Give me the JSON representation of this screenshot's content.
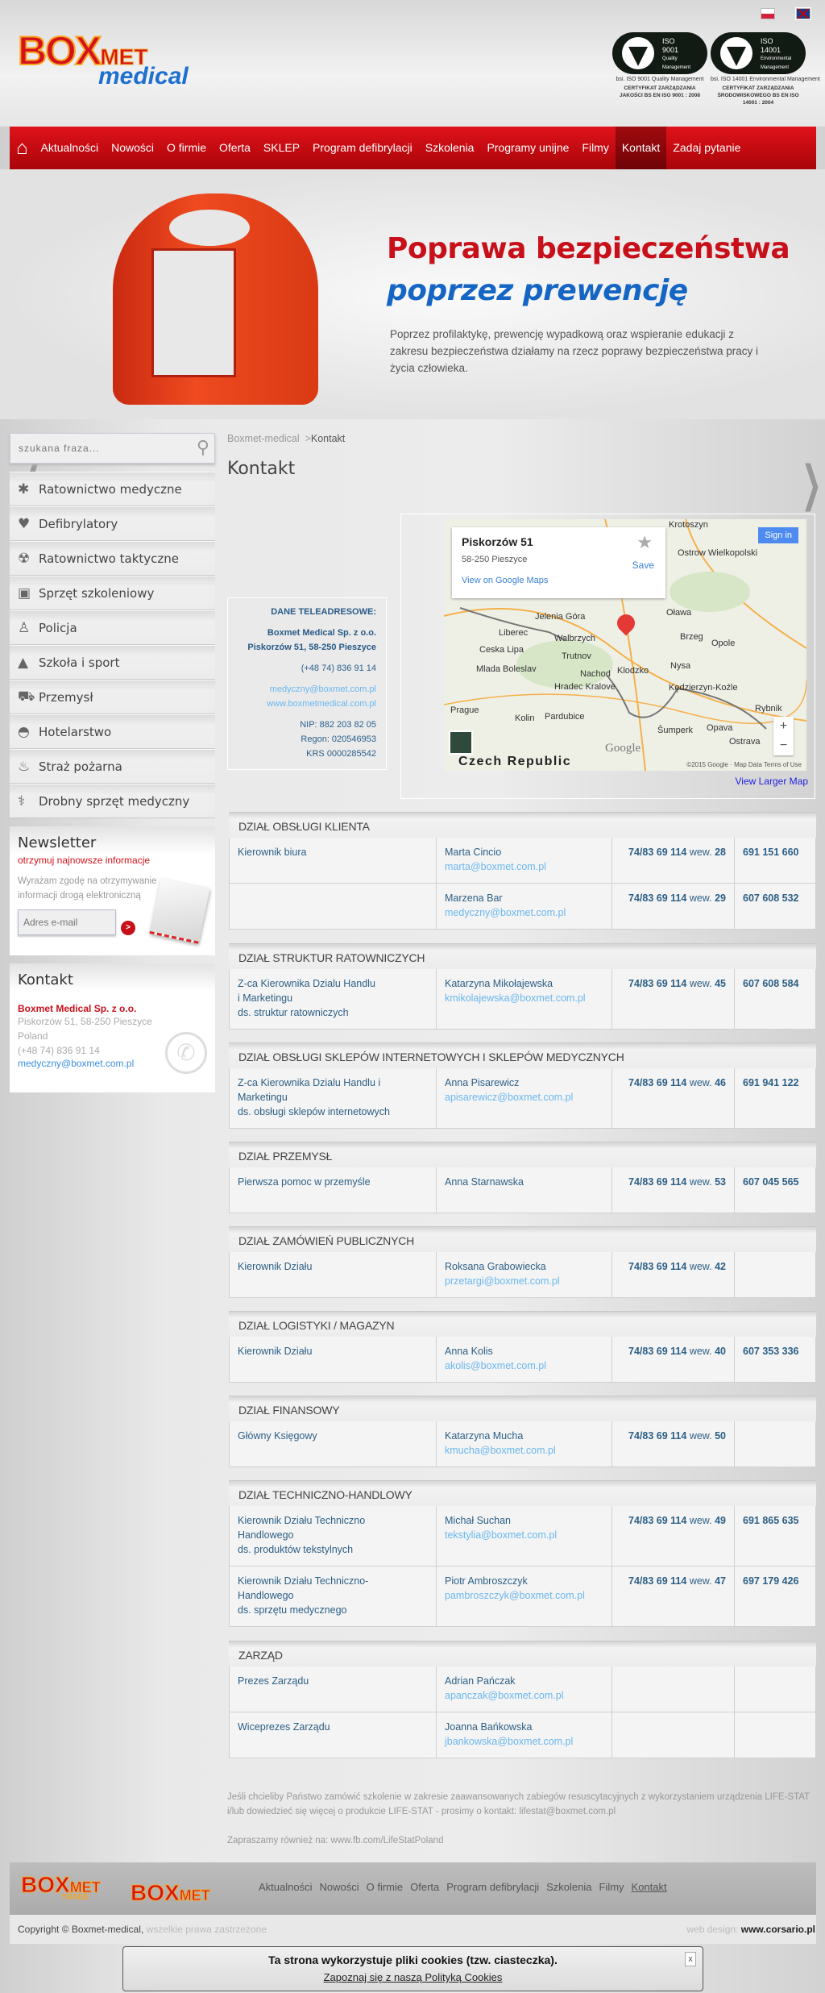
{
  "header": {
    "logo_text": "BOXMET medical",
    "languages": [
      {
        "name": "Polski",
        "flag": "pl-flag"
      },
      {
        "name": "English",
        "flag": "uk-flag"
      }
    ],
    "certificates": [
      {
        "badge": "bsi. ISO 9001 Quality Management",
        "caption": "CERTYFIKAT ZARZĄDZANIA JAKOŚCI BS EN ISO 9001 : 2008",
        "iso": "ISO",
        "num": "9001",
        "l1": "Quality",
        "l2": "Management"
      },
      {
        "badge": "bsi. ISO 14001 Environmental Management",
        "caption": "CERTYFIKAT ZARZĄDZANIA ŚRODOWISKOWEGO BS EN ISO 14001 : 2004",
        "iso": "ISO",
        "num": "14001",
        "l1": "Environmental",
        "l2": "Management"
      }
    ]
  },
  "nav": {
    "items": [
      "Aktualności",
      "Nowości",
      "O firmie",
      "Oferta",
      "SKLEP",
      "Program defibrylacji",
      "Szkolenia",
      "Programy unijne",
      "Filmy",
      "Kontakt",
      "Zadaj pytanie"
    ],
    "active": "Kontakt"
  },
  "hero": {
    "title": "Poprawa bezpieczeństwa",
    "subtitle": "poprzez prewencję",
    "text": "Poprzez profilaktykę, prewencję wypadkową oraz wspieranie edukacji z zakresu bezpieczeństwa działamy na rzecz poprawy bezpieczeństwa pracy i życia człowieka."
  },
  "sidebar": {
    "search_placeholder": "szukana fraza...",
    "menu": [
      {
        "label": "Ratownictwo medyczne",
        "icon": "✱"
      },
      {
        "label": "Defibrylatory",
        "icon": "♥"
      },
      {
        "label": "Ratownictwo taktyczne",
        "icon": "☢"
      },
      {
        "label": "Sprzęt szkoleniowy",
        "icon": "▣"
      },
      {
        "label": "Policja",
        "icon": "♙"
      },
      {
        "label": "Szkoła i sport",
        "icon": "▲"
      },
      {
        "label": "Przemysł",
        "icon": "⛟"
      },
      {
        "label": "Hotelarstwo",
        "icon": "◓"
      },
      {
        "label": "Straż pożarna",
        "icon": "♨"
      },
      {
        "label": "Drobny sprzęt medyczny",
        "icon": "⚕"
      }
    ],
    "newsletter": {
      "title": "Newsletter",
      "subtitle": "otrzymuj najnowsze informacje",
      "consent": "Wyrażam zgodę na otrzymywanie informacji drogą elektroniczną",
      "email_placeholder": "Adres e-mail",
      "submit": ">"
    },
    "contact": {
      "title": "Kontakt",
      "company": "Boxmet Medical Sp. z o.o.",
      "address": "Piskorzów 51, 58-250 Pieszyce",
      "country": "Poland",
      "phone": "(+48 74) 836 91 14",
      "email": "medyczny@boxmet.com.pl"
    }
  },
  "main": {
    "breadcrumb": {
      "home": "Boxmet-medical",
      "sep": ">",
      "current": "Kontakt"
    },
    "title": "Kontakt",
    "dane": {
      "heading": "DANE TELEADRESOWE:",
      "company": "Boxmet Medical Sp.  z o.o.",
      "address": "Piskorzów 51, 58-250 Pieszyce",
      "phone": "(+48 74) 836 91 14",
      "email": "medyczny@boxmet.com.pl",
      "www": "www.boxmetmedical.com.pl",
      "nip": "NIP: 882 203 82 05",
      "regon": "Regon: 020546953",
      "krs": "KRS 0000285542"
    },
    "map": {
      "place_title": "Piskorzów 51",
      "place_city": "58-250 Pieszyce",
      "view_on_maps": "View on Google Maps",
      "save": "Save",
      "sign_in": "Sign in",
      "country_label": "Czech Republic",
      "google": "Google",
      "copyright": "©2015 Google · Map Data    Terms of Use",
      "view_larger": "View Larger Map",
      "cities": [
        "Krotoszyn",
        "Ostrow Wielkopolski",
        "Jelenia Góra",
        "Liberec",
        "Walbrzych",
        "Oława",
        "Brzeg",
        "Opole",
        "Ceska Lipa",
        "Mlada Boleslav",
        "Trutnov",
        "Nachod",
        "Klodzko",
        "Nysa",
        "Hradec Kralove",
        "Kędzierzyn-Koźle",
        "Prague",
        "Kolin",
        "Pardubice",
        "Rybnik",
        "Šumperk",
        "Opava",
        "Ostrava"
      ],
      "zoom_in": "+",
      "zoom_out": "−"
    },
    "wew_label": "wew.",
    "sections": [
      {
        "title": "DZIAŁ OBSŁUGI KLIENTA",
        "rows": [
          {
            "role": "Kierownik biura",
            "name": "Marta Cincio",
            "email": "marta@boxmet.com.pl",
            "phone": "74/83 69 114",
            "ext": "28",
            "mobile": "691 151 660"
          },
          {
            "role": "",
            "name": "Marzena Bar",
            "email": "medyczny@boxmet.com.pl",
            "phone": "74/83 69 114",
            "ext": "29",
            "mobile": "607 608 532"
          }
        ]
      },
      {
        "title": "DZIAŁ STRUKTUR RATOWNICZYCH",
        "rows": [
          {
            "role": "Z-ca Kierownika Dzialu Handlu\ni Marketingu\nds. struktur ratowniczych",
            "name": "Katarzyna Mikołajewska",
            "email": "kmikolajewska@boxmet.com.pl",
            "phone": "74/83 69 114",
            "ext": "45",
            "mobile": "607 608 584"
          }
        ]
      },
      {
        "title": "DZIAŁ OBSŁUGI SKLEPÓW INTERNETOWYCH I SKLEPÓW MEDYCZNYCH",
        "rows": [
          {
            "role": "Z-ca Kierownika Dzialu Handlu i\nMarketingu\nds. obsługi sklepów internetowych",
            "name": "Anna Pisarewicz",
            "email": "apisarewicz@boxmet.com.pl",
            "phone": "74/83 69 114",
            "ext": "46",
            "mobile": "691 941 122"
          }
        ]
      },
      {
        "title": "DZIAŁ PRZEMYSŁ",
        "rows": [
          {
            "role": "Pierwsza pomoc w przemyśle",
            "name": "Anna Starnawska",
            "email": "",
            "phone": "74/83 69 114",
            "ext": "53",
            "mobile": "607 045 565"
          }
        ]
      },
      {
        "title": "DZIAŁ ZAMÓWIEŃ PUBLICZNYCH",
        "rows": [
          {
            "role": "Kierownik Działu",
            "name": "Roksana Grabowiecka",
            "email": "przetargi@boxmet.com.pl",
            "phone": "74/83 69 114",
            "ext": "42",
            "mobile": ""
          }
        ]
      },
      {
        "title": "DZIAŁ LOGISTYKI / MAGAZYN",
        "rows": [
          {
            "role": "Kierownik Działu",
            "name": "Anna Kolis",
            "email": "akolis@boxmet.com.pl",
            "phone": "74/83 69 114",
            "ext": "40",
            "mobile": "607 353 336"
          }
        ]
      },
      {
        "title": "DZIAŁ FINANSOWY",
        "rows": [
          {
            "role": "Główny Księgowy",
            "name": "Katarzyna Mucha",
            "email": "kmucha@boxmet.com.pl",
            "phone": "74/83 69 114",
            "ext": "50",
            "mobile": ""
          }
        ]
      },
      {
        "title": "DZIAŁ TECHNICZNO-HANDLOWY",
        "rows": [
          {
            "role": "Kierownik Działu Techniczno\nHandlowego\nds. produktów tekstylnych",
            "name": "Michał Suchan",
            "email": "tekstylia@boxmet.com.pl",
            "phone": "74/83 69 114",
            "ext": "49",
            "mobile": "691 865 635"
          },
          {
            "role": "Kierownik Działu Techniczno-\nHandlowego\nds. sprzętu medycznego",
            "name": "Piotr Ambroszczyk",
            "email": "pambroszczyk@boxmet.com.pl",
            "phone": "74/83 69 114",
            "ext": "47",
            "mobile": "697 179 426"
          }
        ]
      },
      {
        "title": "ZARZĄD",
        "rows": [
          {
            "role": "Prezes Zarządu",
            "name": "Adrian Pańczak",
            "email": "apanczak@boxmet.com.pl",
            "phone": "",
            "ext": "",
            "mobile": ""
          },
          {
            "role": "Wiceprezes Zarządu",
            "name": "Joanna Bańkowska",
            "email": "jbankowska@boxmet.com.pl",
            "phone": "",
            "ext": "",
            "mobile": ""
          }
        ]
      }
    ],
    "footer_note_1": "Jeśli chcieliby Państwo zamówić szkolenie w zakresie zaawansowanych zabiegów resuscytacyjnych z wykorzystaniem urządzenia LIFE-STAT i/lub dowiedzieć się więcej o produkcie LIFE-STAT - prosimy o kontakt: lifestat@boxmet.com.pl",
    "footer_note_2": "Zapraszamy również na: www.fb.com/LifeStatPoland"
  },
  "footer": {
    "logos": [
      "BOXMET TRADE",
      "BOXMET Ltd."
    ],
    "nav": [
      "Aktualności",
      "Nowości",
      "O firmie",
      "Oferta",
      "Program defibrylacji",
      "Szkolenia",
      "Filmy",
      "Kontakt"
    ],
    "copyright": "Copyright © Boxmet-medical,",
    "rights": " wszelkie prawa zastrzeżone",
    "design_label": "web design: ",
    "design_link": "www.corsario.pl"
  },
  "cookie": {
    "text": "Ta strona wykorzystuje pliki cookies (tzw. ciasteczka).",
    "link": "Zapoznaj się z naszą Polityką Cookies",
    "close": "x"
  },
  "colors": {
    "brand_red": "#d5121b",
    "brand_blue": "#1566c4",
    "link_blue": "#6ab7f0",
    "text_blue": "#2c5f86"
  }
}
